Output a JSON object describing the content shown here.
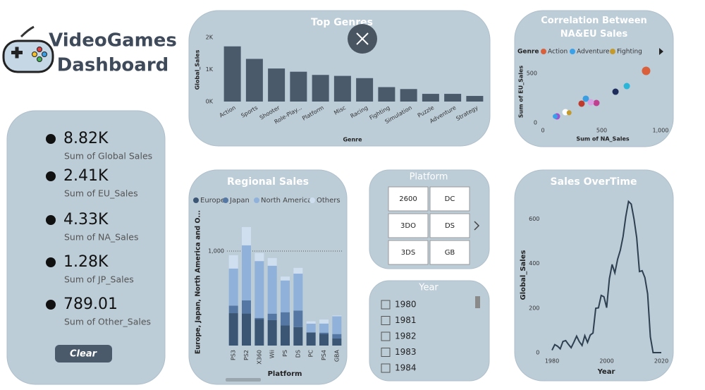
{
  "header": {
    "title_line1": "VideoGames",
    "title_line2": "Dashboard"
  },
  "kpis": [
    {
      "value": "8.82K",
      "label": "Sum of Global Sales"
    },
    {
      "value": "2.41K",
      "label": "Sum of EU_Sales"
    },
    {
      "value": "4.33K",
      "label": "Sum of NA_Sales"
    },
    {
      "value": "1.28K",
      "label": "Sum of JP_Sales"
    },
    {
      "value": "789.01",
      "label": "Sum of Other_Sales"
    }
  ],
  "clear_button": "Clear",
  "platform_slicer": {
    "title": "Platform",
    "items": [
      "2600",
      "DC",
      "3DO",
      "DS",
      "3DS",
      "GB"
    ]
  },
  "year_slicer": {
    "title": "Year",
    "items": [
      1980,
      1981,
      1982,
      1983,
      1984
    ]
  },
  "chart_data": [
    {
      "type": "bar",
      "title": "Top Genres",
      "x_label": "Genre",
      "y_label": "Global_Sales",
      "categories": [
        "Action",
        "Sports",
        "Shooter",
        "Role-Play...",
        "Platform",
        "Misc",
        "Racing",
        "Fighting",
        "Simulation",
        "Puzzle",
        "Adventure",
        "Strategy"
      ],
      "values": [
        1720,
        1330,
        1030,
        930,
        830,
        800,
        730,
        450,
        390,
        240,
        240,
        175
      ],
      "color": "#4a5a6b",
      "ylim": [
        0,
        2000
      ],
      "yticks": [
        {
          "value": 0,
          "label": "0K"
        },
        {
          "value": 1000,
          "label": "1K"
        },
        {
          "value": 2000,
          "label": "2K"
        }
      ]
    },
    {
      "type": "scatter",
      "title": "Correlation Between NA&EU Sales",
      "legend_title": "Genre",
      "x_label": "Sum of NA_Sales",
      "y_label": "Sum of EU_Sales",
      "series": [
        {
          "name": "Action",
          "color": "#d9603b",
          "x": [
            877
          ],
          "values": [
            525
          ]
        },
        {
          "name": "Adventure",
          "color": "#3aa0e8",
          "x": [
            105
          ],
          "values": [
            64
          ]
        },
        {
          "name": "Fighting",
          "color": "#c49a2c",
          "x": [
            223
          ],
          "values": [
            101
          ]
        }
      ],
      "other_points": {
        "x": [
          713,
          617,
          455,
          365,
          329,
          407,
          192,
          120
        ],
        "values": [
          371,
          314,
          200,
          243,
          193,
          207,
          107,
          64
        ],
        "colors": [
          "#2bb5d8",
          "#1f2d5c",
          "#c04090",
          "#3a9ee0",
          "#c0392b",
          "#d8a0e0",
          "#ffffff",
          "#a050d0"
        ]
      },
      "xlim": [
        0,
        1000
      ],
      "ylim": [
        0,
        600
      ],
      "xticks": [
        0,
        500,
        {
          "value": 1000,
          "label": "1,000"
        }
      ],
      "yticks": [
        0,
        500
      ]
    },
    {
      "type": "stacked_bar",
      "title": "Regional Sales",
      "x_label": "Platform",
      "y_label": "Europe, Japan, North America and O...",
      "categories": [
        "PS3",
        "PS2",
        "X360",
        "Wii",
        "PS",
        "DS",
        "PC",
        "PS4",
        "GBA"
      ],
      "series": [
        {
          "name": "Europe",
          "color": "#3b5675",
          "values": [
            343,
            339,
            280,
            269,
            213,
            195,
            139,
            123,
            75
          ]
        },
        {
          "name": "Japan",
          "color": "#5577a3",
          "values": [
            80,
            139,
            13,
            69,
            140,
            176,
            0,
            14,
            47
          ]
        },
        {
          "name": "North America",
          "color": "#8fb1da",
          "values": [
            392,
            583,
            601,
            507,
            336,
            390,
            93,
            96,
            188
          ]
        },
        {
          "name": "Others",
          "color": "#cfdff0",
          "values": [
            141,
            193,
            85,
            81,
            41,
            61,
            25,
            43,
            8
          ]
        }
      ],
      "ylim": [
        0,
        1400
      ],
      "yticks": [
        {
          "value": 1000,
          "label": "1,000"
        }
      ],
      "grid": true
    },
    {
      "type": "line",
      "title": "Sales OverTime",
      "x_label": "Year",
      "y_label": "Global_Sales",
      "x": [
        1980,
        1981,
        1982,
        1983,
        1984,
        1985,
        1986,
        1987,
        1988,
        1989,
        1990,
        1991,
        1992,
        1993,
        1994,
        1995,
        1996,
        1997,
        1998,
        1999,
        2000,
        2001,
        2002,
        2003,
        2004,
        2005,
        2006,
        2007,
        2008,
        2009,
        2010,
        2011,
        2012,
        2013,
        2014,
        2015,
        2016,
        2017,
        2020
      ],
      "values": [
        11,
        36,
        29,
        17,
        50,
        54,
        37,
        22,
        47,
        74,
        49,
        32,
        76,
        46,
        79,
        88,
        199,
        201,
        257,
        251,
        202,
        332,
        396,
        358,
        419,
        460,
        521,
        611,
        679,
        667,
        601,
        516,
        364,
        368,
        337,
        264,
        71,
        0,
        0
      ],
      "color": "#2e3f4f",
      "xlim": [
        1977,
        2022
      ],
      "xticks": [
        1980,
        2000,
        2020
      ],
      "ylim": [
        0,
        700
      ],
      "yticks": [
        0,
        200,
        400,
        600
      ]
    }
  ]
}
